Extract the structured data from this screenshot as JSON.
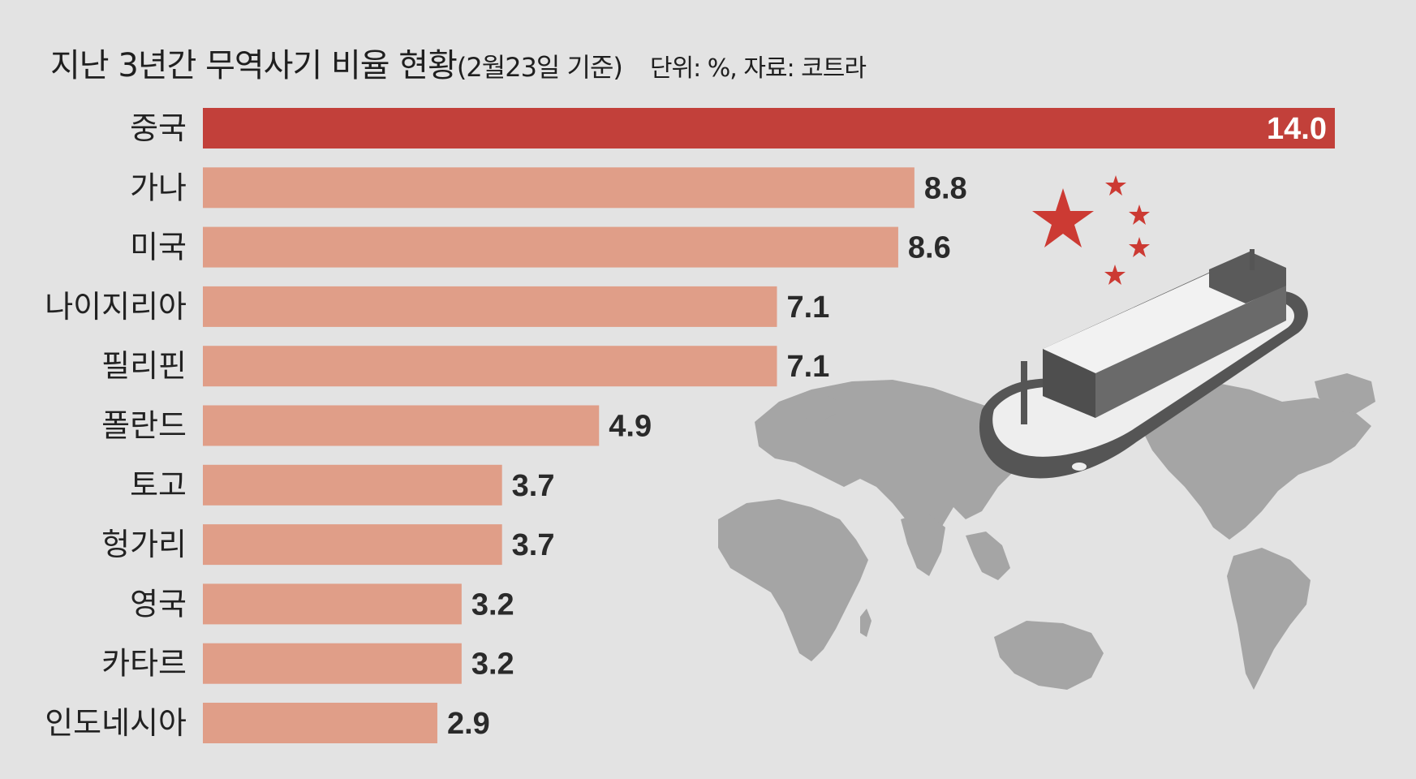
{
  "title": "지난 3년간 무역사기 비율 현황",
  "subtitle": "(2월23일 기준)",
  "unit_source": "단위: %, 자료: 코트라",
  "colors": {
    "background": "#e3e3e3",
    "highlight_bar": "#c2403a",
    "bar": "#e09e88",
    "map": "#a5a5a5",
    "star": "#cc3a33",
    "ship_dark": "#555555",
    "ship_light": "#eeeeee"
  },
  "decorations": [
    "world-map",
    "cargo-ship",
    "china-flag-stars"
  ],
  "chart_data": {
    "type": "bar",
    "orientation": "horizontal",
    "categories": [
      "중국",
      "가나",
      "미국",
      "나이지리아",
      "필리핀",
      "폴란드",
      "토고",
      "헝가리",
      "영국",
      "카타르",
      "인도네시아"
    ],
    "values": [
      14.0,
      8.8,
      8.6,
      7.1,
      7.1,
      4.9,
      3.7,
      3.7,
      3.2,
      3.2,
      2.9
    ],
    "value_labels": [
      "14.0",
      "8.8",
      "8.6",
      "7.1",
      "7.1",
      "4.9",
      "3.7",
      "3.7",
      "3.2",
      "3.2",
      "2.9"
    ],
    "highlight_index": 0,
    "xlim": [
      0,
      14.0
    ],
    "grid": false,
    "legend": "none"
  }
}
